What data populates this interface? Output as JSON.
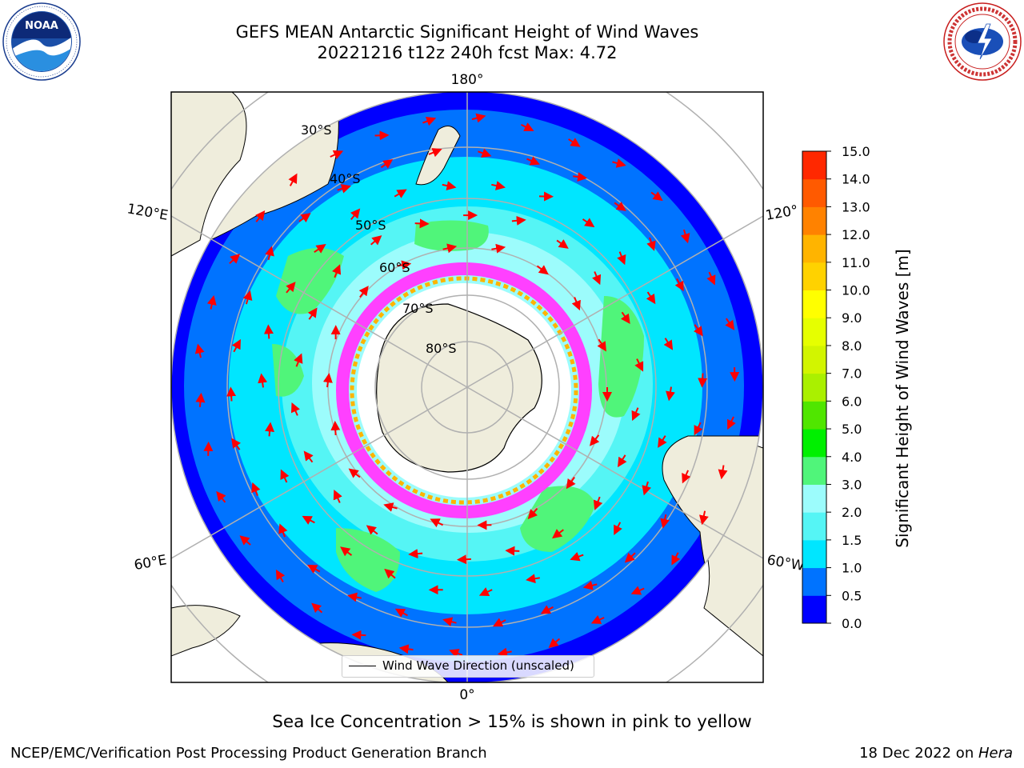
{
  "header": {
    "title_line1": "GEFS MEAN Antarctic Significant Height of Wind Waves",
    "title_line2": "20221216 t12z 240h fcst   Max: 4.72"
  },
  "logos": {
    "left": "NOAA",
    "right": "NATIONAL WEATHER SERVICE"
  },
  "map": {
    "projection": "south-polar-stereographic",
    "longitude_labels": {
      "top": "180°",
      "bottom": "0°",
      "upper_left": "120°E",
      "lower_left": "60°E",
      "upper_right": "120°",
      "lower_right": "60°W"
    },
    "latitude_labels": [
      "30°S",
      "40°S",
      "50°S",
      "60°S",
      "70°S",
      "80°S"
    ],
    "legend_label": "Wind Wave Direction (unscaled)",
    "land_color": "#efeddc",
    "arrow_color": "#ff0000"
  },
  "colorbar": {
    "label": "Significant Height of Wind Waves [m]",
    "ticks": [
      "0.0",
      "0.5",
      "1.0",
      "1.5",
      "2.0",
      "3.0",
      "4.0",
      "5.0",
      "6.0",
      "7.0",
      "8.0",
      "9.0",
      "10.0",
      "11.0",
      "12.0",
      "13.0",
      "14.0",
      "15.0"
    ],
    "colors": [
      "#0000ff",
      "#0073ff",
      "#00e6ff",
      "#55f5f5",
      "#9cfcfc",
      "#50f57a",
      "#00f000",
      "#50e600",
      "#aaf000",
      "#d2f500",
      "#e6ff00",
      "#ffff00",
      "#ffd200",
      "#ffb400",
      "#ff8200",
      "#ff5a00",
      "#ff2800"
    ]
  },
  "notes": {
    "sea_ice": "Sea Ice Concentration > 15% is shown in pink to yellow"
  },
  "footer": {
    "left": "NCEP/EMC/Verification Post Processing Product Generation Branch",
    "right_prefix": "18 Dec 2022 on ",
    "right_italic": "Hera"
  }
}
